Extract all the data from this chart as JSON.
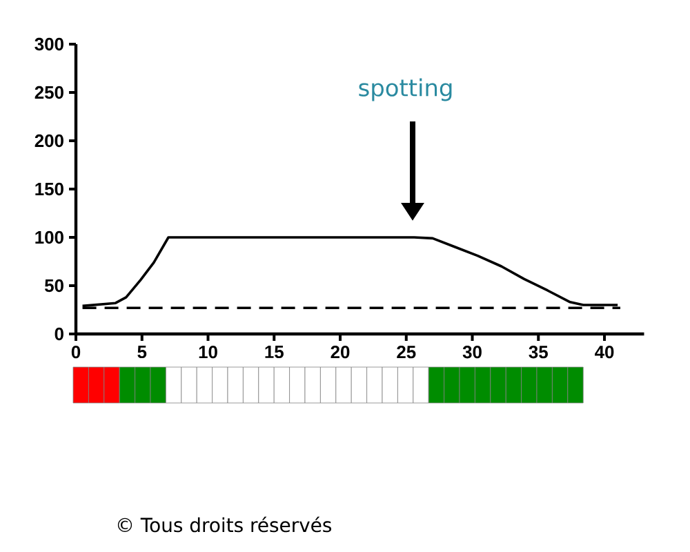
{
  "chart_data": {
    "type": "line",
    "xlim": [
      0,
      43
    ],
    "ylim": [
      0,
      300
    ],
    "xticks": [
      0,
      5,
      10,
      15,
      20,
      25,
      30,
      35,
      40
    ],
    "yticks": [
      0,
      50,
      100,
      150,
      200,
      250,
      300
    ],
    "grid": false,
    "marker": "none",
    "series": [
      {
        "color": "#000000",
        "line_style": "solid",
        "x": [
          0.5,
          3,
          3.8,
          4.9,
          5.9,
          7,
          25.6,
          27,
          28.7,
          30.4,
          32.2,
          33.9,
          35.7,
          37.4,
          38.4,
          41
        ],
        "values": [
          29,
          32,
          38,
          56,
          74,
          100,
          100,
          99,
          90,
          81,
          70,
          57,
          45,
          33,
          30,
          30
        ]
      },
      {
        "color": "#000000",
        "line_style": "dashed",
        "x": [
          0.5,
          41.2
        ],
        "values": [
          27,
          27
        ]
      }
    ],
    "annotations": [
      "spotting",
      "© Tous droits réservés"
    ]
  }
}
